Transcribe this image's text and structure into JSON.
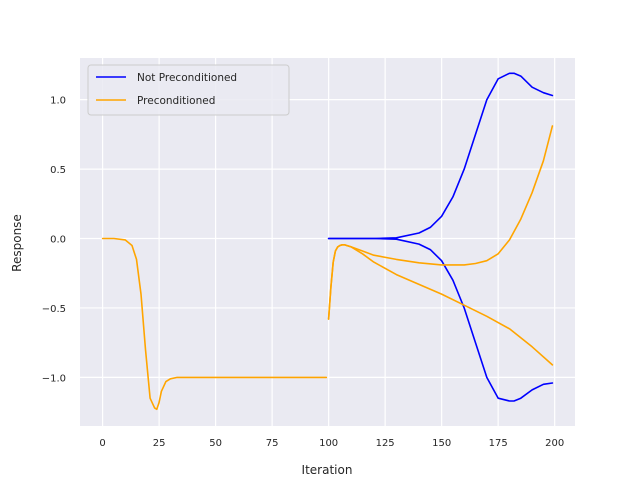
{
  "chart_data": {
    "type": "line",
    "title": "",
    "xlabel": "Iteration",
    "ylabel": "Response",
    "xlim": [
      -10,
      209
    ],
    "ylim": [
      -1.35,
      1.3
    ],
    "grid": true,
    "background": "#eaeaf2",
    "legend_position": "upper-left",
    "xticks": [
      0,
      25,
      50,
      75,
      100,
      125,
      150,
      175,
      200
    ],
    "xtick_labels": [
      "0",
      "25",
      "50",
      "75",
      "100",
      "125",
      "150",
      "175",
      "200"
    ],
    "yticks": [
      1.0,
      0.5,
      0.0,
      -0.5,
      -1.0
    ],
    "ytick_labels": [
      "1.0",
      "0.5",
      "0.0",
      "−0.5",
      "−1.0"
    ],
    "legend": [
      {
        "label": "Not Preconditioned",
        "color": "#0000ff"
      },
      {
        "label": "Preconditioned",
        "color": "#ffa500"
      }
    ],
    "series": [
      {
        "name": "Not Preconditioned",
        "color": "#0000ff",
        "segments": [
          {
            "x": [
              100,
              110,
              120,
              130,
              140,
              145,
              150,
              155,
              160,
              165,
              170,
              175,
              180,
              182,
              185,
              190,
              195,
              199
            ],
            "y": [
              0.0,
              0.0,
              0.0,
              0.005,
              0.04,
              0.08,
              0.16,
              0.3,
              0.5,
              0.75,
              1.0,
              1.15,
              1.19,
              1.19,
              1.17,
              1.09,
              1.05,
              1.03
            ]
          },
          {
            "x": [
              100,
              110,
              120,
              130,
              140,
              145,
              150,
              155,
              160,
              165,
              170,
              175,
              180,
              182,
              185,
              190,
              195,
              199
            ],
            "y": [
              0.0,
              0.0,
              0.0,
              -0.005,
              -0.04,
              -0.08,
              -0.16,
              -0.3,
              -0.5,
              -0.75,
              -1.0,
              -1.15,
              -1.17,
              -1.17,
              -1.15,
              -1.09,
              -1.05,
              -1.04
            ]
          }
        ]
      },
      {
        "name": "Preconditioned",
        "color": "#ffa500",
        "segments": [
          {
            "x": [
              0,
              5,
              10,
              13,
              15,
              17,
              19,
              21,
              23,
              24,
              25,
              26,
              28,
              30,
              33,
              36,
              40,
              50,
              60,
              70,
              80,
              90,
              99
            ],
            "y": [
              0.0,
              0.0,
              -0.01,
              -0.05,
              -0.15,
              -0.4,
              -0.8,
              -1.15,
              -1.22,
              -1.23,
              -1.18,
              -1.1,
              -1.03,
              -1.01,
              -1.0,
              -1.0,
              -1.0,
              -1.0,
              -1.0,
              -1.0,
              -1.0,
              -1.0,
              -1.0
            ]
          },
          {
            "x": [
              100,
              101,
              102,
              103,
              104,
              105,
              106,
              107,
              108,
              110,
              115,
              120,
              130,
              140,
              150,
              155,
              160,
              165,
              170,
              175,
              180,
              185,
              190,
              195,
              199
            ],
            "y": [
              -0.58,
              -0.35,
              -0.17,
              -0.09,
              -0.06,
              -0.05,
              -0.045,
              -0.045,
              -0.05,
              -0.06,
              -0.09,
              -0.12,
              -0.15,
              -0.175,
              -0.19,
              -0.19,
              -0.19,
              -0.18,
              -0.16,
              -0.11,
              -0.01,
              0.14,
              0.33,
              0.56,
              0.81
            ]
          },
          {
            "x": [
              100,
              101,
              102,
              103,
              104,
              105,
              106,
              107,
              108,
              110,
              115,
              120,
              130,
              140,
              150,
              160,
              170,
              180,
              190,
              199
            ],
            "y": [
              -0.58,
              -0.35,
              -0.17,
              -0.09,
              -0.06,
              -0.05,
              -0.045,
              -0.045,
              -0.05,
              -0.06,
              -0.11,
              -0.17,
              -0.26,
              -0.33,
              -0.4,
              -0.48,
              -0.56,
              -0.65,
              -0.78,
              -0.91
            ]
          }
        ]
      }
    ]
  }
}
